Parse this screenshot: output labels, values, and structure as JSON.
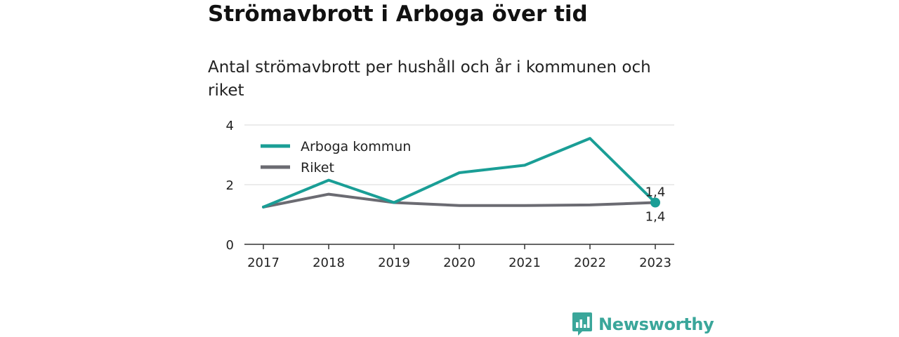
{
  "header": {
    "title": "Strömavbrott i Arboga över tid",
    "subtitle": "Antal strömavbrott per hushåll och år i kommunen och riket"
  },
  "brand": {
    "name": "Newsworthy",
    "icon": "bar-chart-logo-icon",
    "color": "#3aa69a"
  },
  "chart_data": {
    "type": "line",
    "title": "Strömavbrott i Arboga över tid",
    "subtitle": "Antal strömavbrott per hushåll och år i kommunen och riket",
    "xlabel": "",
    "ylabel": "",
    "x": [
      "2017",
      "2018",
      "2019",
      "2020",
      "2021",
      "2022",
      "2023"
    ],
    "ylim": [
      0,
      4
    ],
    "yticks": [
      0,
      2,
      4
    ],
    "grid": true,
    "legend_position": "top-left",
    "series": [
      {
        "name": "Arboga kommun",
        "color": "#1a9e96",
        "values": [
          1.25,
          2.15,
          1.4,
          2.4,
          2.65,
          3.55,
          1.4
        ],
        "end_label": "1,4"
      },
      {
        "name": "Riket",
        "color": "#6b6b72",
        "values": [
          1.25,
          1.68,
          1.4,
          1.3,
          1.3,
          1.32,
          1.4
        ],
        "end_label": "1,4"
      }
    ]
  }
}
